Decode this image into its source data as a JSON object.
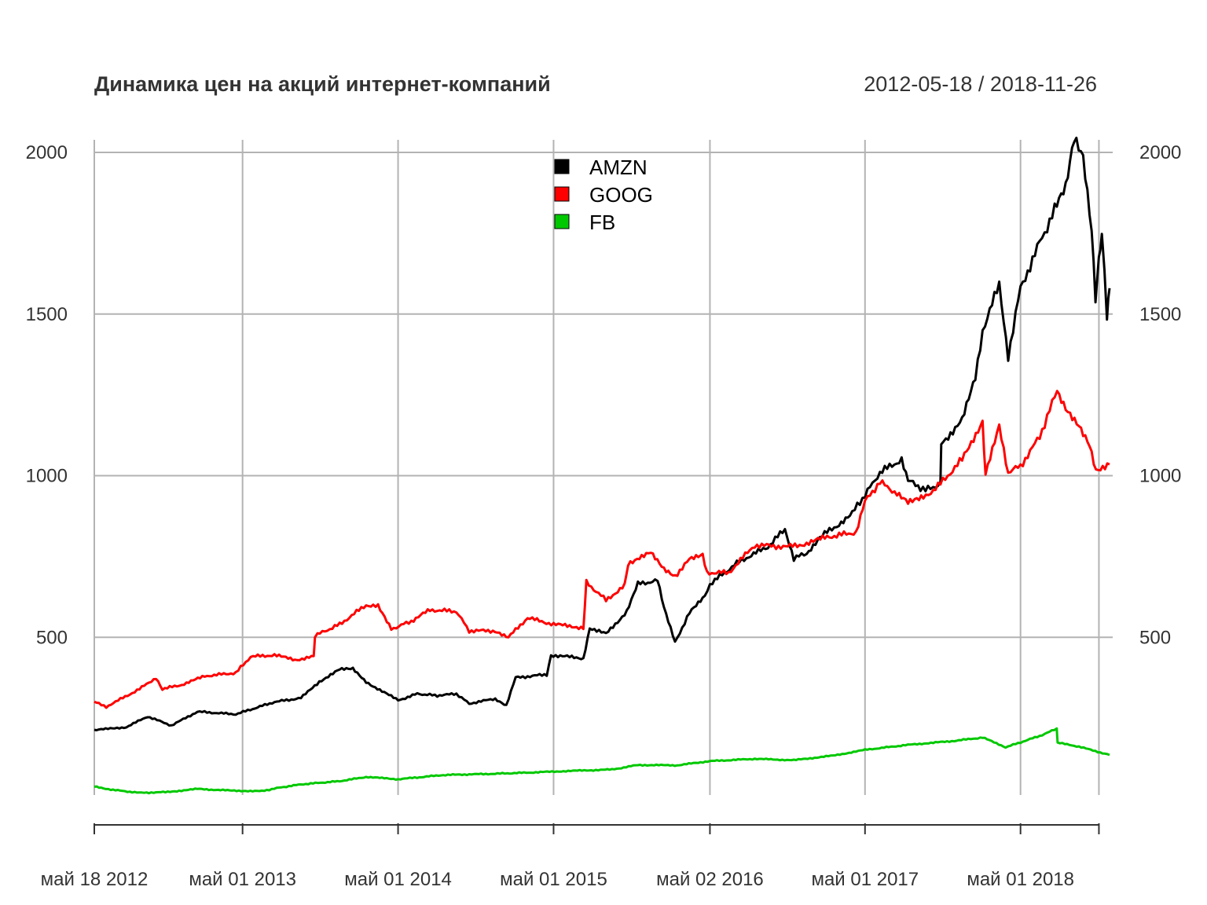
{
  "chart_data": {
    "type": "line",
    "title": "Динамика цен на акций интернет-компаний",
    "date_range": "2012-05-18 / 2018-11-26",
    "x_start": "2012-05-18",
    "x_end": "2018-11-26",
    "ylim": [
      0,
      2000
    ],
    "yticks": [
      500,
      1000,
      1500,
      2000
    ],
    "xtick_labels": [
      "май 18 2012",
      "май 01 2013",
      "май 01 2014",
      "май 01 2015",
      "май 02 2016",
      "май 01 2017",
      "май 01 2018"
    ],
    "xtick_dates": [
      "2012-05-18",
      "2013-05-01",
      "2014-05-01",
      "2015-05-01",
      "2016-05-02",
      "2017-05-01",
      "2018-05-01"
    ],
    "grid": true,
    "legend_position": "top-center",
    "series": [
      {
        "name": "AMZN",
        "color": "#000000",
        "points": [
          [
            "2012-05-18",
            213
          ],
          [
            "2012-08-01",
            222
          ],
          [
            "2012-09-20",
            255
          ],
          [
            "2012-11-15",
            227
          ],
          [
            "2013-01-15",
            270
          ],
          [
            "2013-04-15",
            262
          ],
          [
            "2013-07-15",
            300
          ],
          [
            "2013-09-15",
            312
          ],
          [
            "2013-10-28",
            363
          ],
          [
            "2013-12-15",
            400
          ],
          [
            "2014-01-15",
            402
          ],
          [
            "2014-02-15",
            362
          ],
          [
            "2014-05-01",
            305
          ],
          [
            "2014-06-15",
            325
          ],
          [
            "2014-08-01",
            320
          ],
          [
            "2014-09-15",
            325
          ],
          [
            "2014-10-15",
            295
          ],
          [
            "2014-12-15",
            310
          ],
          [
            "2015-01-10",
            290
          ],
          [
            "2015-02-01",
            375
          ],
          [
            "2015-04-15",
            385
          ],
          [
            "2015-04-25",
            445
          ],
          [
            "2015-07-10",
            435
          ],
          [
            "2015-07-25",
            530
          ],
          [
            "2015-09-01",
            510
          ],
          [
            "2015-10-20",
            580
          ],
          [
            "2015-11-15",
            665
          ],
          [
            "2015-12-31",
            675
          ],
          [
            "2016-01-15",
            590
          ],
          [
            "2016-02-10",
            485
          ],
          [
            "2016-03-15",
            575
          ],
          [
            "2016-04-20",
            625
          ],
          [
            "2016-05-02",
            665
          ],
          [
            "2016-07-10",
            735
          ],
          [
            "2016-09-15",
            780
          ],
          [
            "2016-10-25",
            835
          ],
          [
            "2016-11-15",
            745
          ],
          [
            "2016-12-15",
            760
          ],
          [
            "2017-01-15",
            810
          ],
          [
            "2017-03-01",
            850
          ],
          [
            "2017-04-01",
            885
          ],
          [
            "2017-05-01",
            940
          ],
          [
            "2017-06-05",
            1010
          ],
          [
            "2017-07-26",
            1050
          ],
          [
            "2017-08-10",
            985
          ],
          [
            "2017-09-20",
            955
          ],
          [
            "2017-10-25",
            975
          ],
          [
            "2017-10-27",
            1100
          ],
          [
            "2017-12-15",
            1170
          ],
          [
            "2018-01-15",
            1300
          ],
          [
            "2018-02-01",
            1450
          ],
          [
            "2018-03-12",
            1590
          ],
          [
            "2018-04-02",
            1370
          ],
          [
            "2018-05-01",
            1580
          ],
          [
            "2018-06-15",
            1720
          ],
          [
            "2018-07-20",
            1820
          ],
          [
            "2018-08-15",
            1890
          ],
          [
            "2018-09-04",
            2040
          ],
          [
            "2018-09-25",
            1990
          ],
          [
            "2018-10-15",
            1760
          ],
          [
            "2018-10-24",
            1540
          ],
          [
            "2018-11-01",
            1670
          ],
          [
            "2018-11-08",
            1750
          ],
          [
            "2018-11-20",
            1500
          ],
          [
            "2018-11-26",
            1580
          ]
        ]
      },
      {
        "name": "GOOG",
        "color": "#ff0000",
        "points": [
          [
            "2012-05-18",
            300
          ],
          [
            "2012-06-15",
            285
          ],
          [
            "2012-09-01",
            340
          ],
          [
            "2012-10-10",
            375
          ],
          [
            "2012-10-25",
            340
          ],
          [
            "2012-12-15",
            355
          ],
          [
            "2013-02-01",
            380
          ],
          [
            "2013-04-15",
            390
          ],
          [
            "2013-05-20",
            440
          ],
          [
            "2013-07-15",
            445
          ],
          [
            "2013-09-01",
            430
          ],
          [
            "2013-10-15",
            440
          ],
          [
            "2013-10-18",
            505
          ],
          [
            "2013-12-15",
            540
          ],
          [
            "2014-02-15",
            600
          ],
          [
            "2014-03-15",
            595
          ],
          [
            "2014-04-15",
            525
          ],
          [
            "2014-06-01",
            550
          ],
          [
            "2014-07-15",
            585
          ],
          [
            "2014-09-15",
            580
          ],
          [
            "2014-10-15",
            520
          ],
          [
            "2014-12-15",
            520
          ],
          [
            "2015-01-15",
            500
          ],
          [
            "2015-03-01",
            560
          ],
          [
            "2015-05-01",
            540
          ],
          [
            "2015-07-10",
            530
          ],
          [
            "2015-07-17",
            670
          ],
          [
            "2015-09-01",
            615
          ],
          [
            "2015-10-15",
            660
          ],
          [
            "2015-10-23",
            730
          ],
          [
            "2015-12-15",
            760
          ],
          [
            "2016-01-15",
            710
          ],
          [
            "2016-02-10",
            690
          ],
          [
            "2016-03-15",
            740
          ],
          [
            "2016-04-15",
            755
          ],
          [
            "2016-04-25",
            700
          ],
          [
            "2016-06-15",
            700
          ],
          [
            "2016-08-15",
            785
          ],
          [
            "2016-11-01",
            780
          ],
          [
            "2016-12-15",
            790
          ],
          [
            "2017-02-01",
            810
          ],
          [
            "2017-04-10",
            825
          ],
          [
            "2017-05-01",
            920
          ],
          [
            "2017-06-05",
            980
          ],
          [
            "2017-07-15",
            945
          ],
          [
            "2017-08-10",
            915
          ],
          [
            "2017-09-15",
            930
          ],
          [
            "2017-10-25",
            975
          ],
          [
            "2017-12-15",
            1050
          ],
          [
            "2018-02-01",
            1170
          ],
          [
            "2018-02-08",
            1000
          ],
          [
            "2018-03-12",
            1160
          ],
          [
            "2018-04-02",
            1010
          ],
          [
            "2018-05-01",
            1030
          ],
          [
            "2018-06-15",
            1120
          ],
          [
            "2018-07-26",
            1265
          ],
          [
            "2018-08-15",
            1210
          ],
          [
            "2018-09-15",
            1160
          ],
          [
            "2018-10-10",
            1100
          ],
          [
            "2018-10-25",
            1020
          ],
          [
            "2018-11-26",
            1035
          ]
        ]
      },
      {
        "name": "FB",
        "color": "#00c800",
        "points": [
          [
            "2012-05-18",
            38
          ],
          [
            "2012-07-01",
            28
          ],
          [
            "2012-09-01",
            19
          ],
          [
            "2012-11-01",
            21
          ],
          [
            "2013-01-15",
            31
          ],
          [
            "2013-04-01",
            26
          ],
          [
            "2013-06-15",
            24
          ],
          [
            "2013-07-26",
            35
          ],
          [
            "2013-09-15",
            45
          ],
          [
            "2013-12-15",
            55
          ],
          [
            "2014-02-15",
            68
          ],
          [
            "2014-05-01",
            61
          ],
          [
            "2014-08-15",
            74
          ],
          [
            "2014-12-15",
            78
          ],
          [
            "2015-03-15",
            82
          ],
          [
            "2015-06-15",
            87
          ],
          [
            "2015-09-15",
            91
          ],
          [
            "2015-11-15",
            105
          ],
          [
            "2016-02-15",
            104
          ],
          [
            "2016-05-02",
            117
          ],
          [
            "2016-08-15",
            124
          ],
          [
            "2016-11-15",
            120
          ],
          [
            "2017-02-15",
            134
          ],
          [
            "2017-05-01",
            152
          ],
          [
            "2017-08-15",
            168
          ],
          [
            "2017-11-15",
            178
          ],
          [
            "2018-02-01",
            190
          ],
          [
            "2018-03-27",
            160
          ],
          [
            "2018-05-01",
            175
          ],
          [
            "2018-06-15",
            195
          ],
          [
            "2018-07-25",
            217
          ],
          [
            "2018-07-27",
            174
          ],
          [
            "2018-09-15",
            162
          ],
          [
            "2018-11-26",
            136
          ]
        ]
      }
    ]
  }
}
